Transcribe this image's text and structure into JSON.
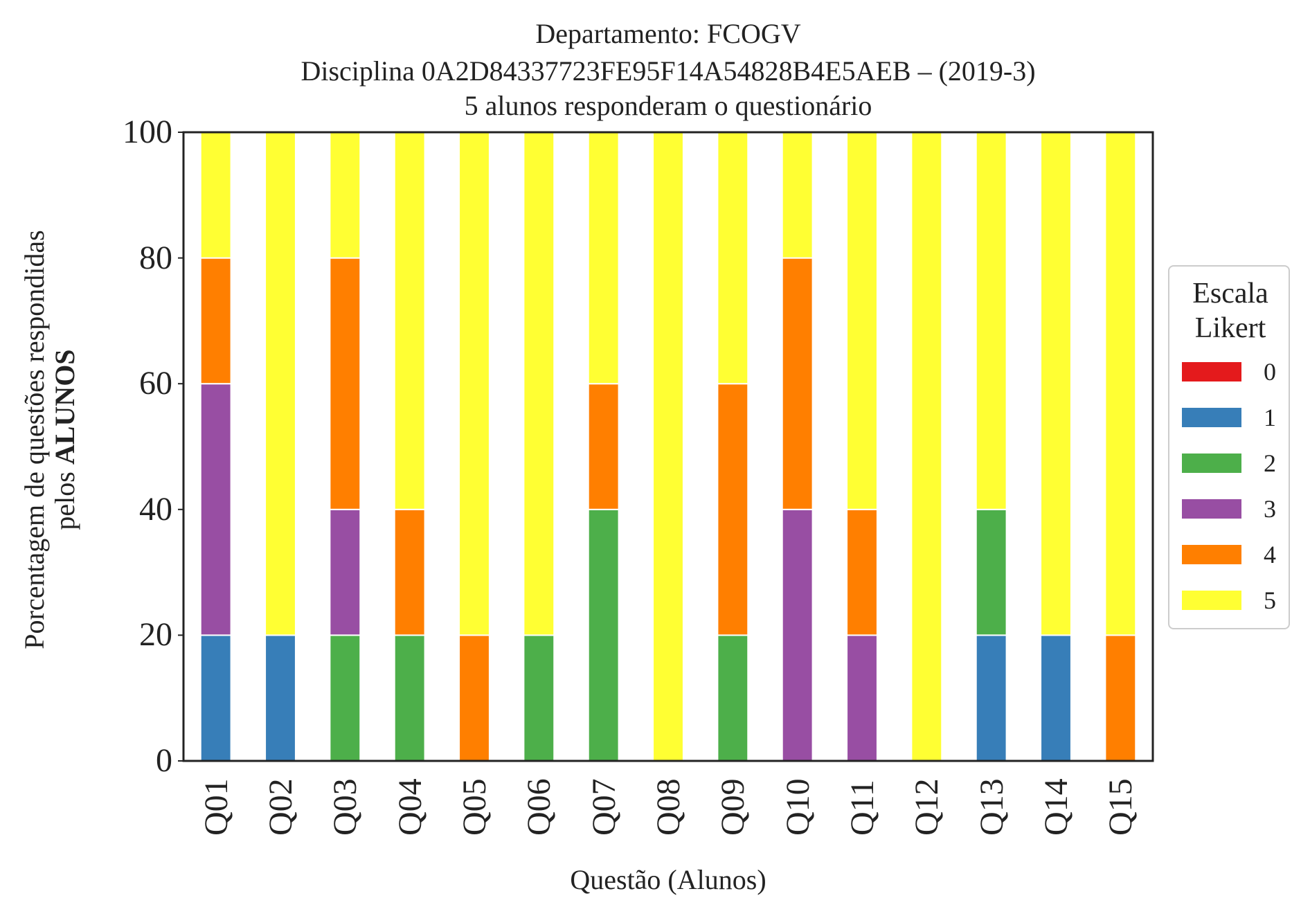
{
  "chart_data": {
    "type": "bar",
    "stacked": true,
    "title_lines": [
      "Departamento: FCOGV",
      "Disciplina 0A2D84337723FE95F14A54828B4E5AEB – (2019-3)",
      "5 alunos responderam o questionário"
    ],
    "xlabel": "Questão (Alunos)",
    "ylabel_line1": "Porcentagem de questões respondidas",
    "ylabel_line2_prefix": "pelos ",
    "ylabel_line2_bold": "ALUNOS",
    "ylim": [
      0,
      100
    ],
    "yticks": [
      "0",
      "20",
      "40",
      "60",
      "80",
      "100"
    ],
    "categories": [
      "Q01",
      "Q02",
      "Q03",
      "Q04",
      "Q05",
      "Q06",
      "Q07",
      "Q08",
      "Q09",
      "Q10",
      "Q11",
      "Q12",
      "Q13",
      "Q14",
      "Q15"
    ],
    "legend": {
      "title_line1": "Escala",
      "title_line2": "Likert",
      "placement": "right"
    },
    "series": [
      {
        "name": "0",
        "color": "#e41a1c",
        "values": [
          0,
          0,
          0,
          0,
          0,
          0,
          0,
          0,
          0,
          0,
          0,
          0,
          0,
          0,
          0
        ]
      },
      {
        "name": "1",
        "color": "#377eb8",
        "values": [
          20,
          20,
          0,
          0,
          0,
          0,
          0,
          0,
          0,
          0,
          0,
          0,
          20,
          20,
          0
        ]
      },
      {
        "name": "2",
        "color": "#4daf4a",
        "values": [
          0,
          0,
          20,
          20,
          0,
          20,
          40,
          0,
          20,
          0,
          0,
          0,
          20,
          0,
          0
        ]
      },
      {
        "name": "3",
        "color": "#984ea3",
        "values": [
          40,
          0,
          20,
          0,
          0,
          0,
          0,
          0,
          0,
          40,
          20,
          0,
          0,
          0,
          0
        ]
      },
      {
        "name": "4",
        "color": "#ff7f00",
        "values": [
          20,
          0,
          40,
          20,
          20,
          0,
          20,
          0,
          40,
          40,
          20,
          0,
          0,
          0,
          20
        ]
      },
      {
        "name": "5",
        "color": "#ffff33",
        "values": [
          20,
          80,
          20,
          60,
          80,
          80,
          40,
          100,
          40,
          20,
          60,
          100,
          60,
          80,
          80
        ]
      }
    ]
  }
}
